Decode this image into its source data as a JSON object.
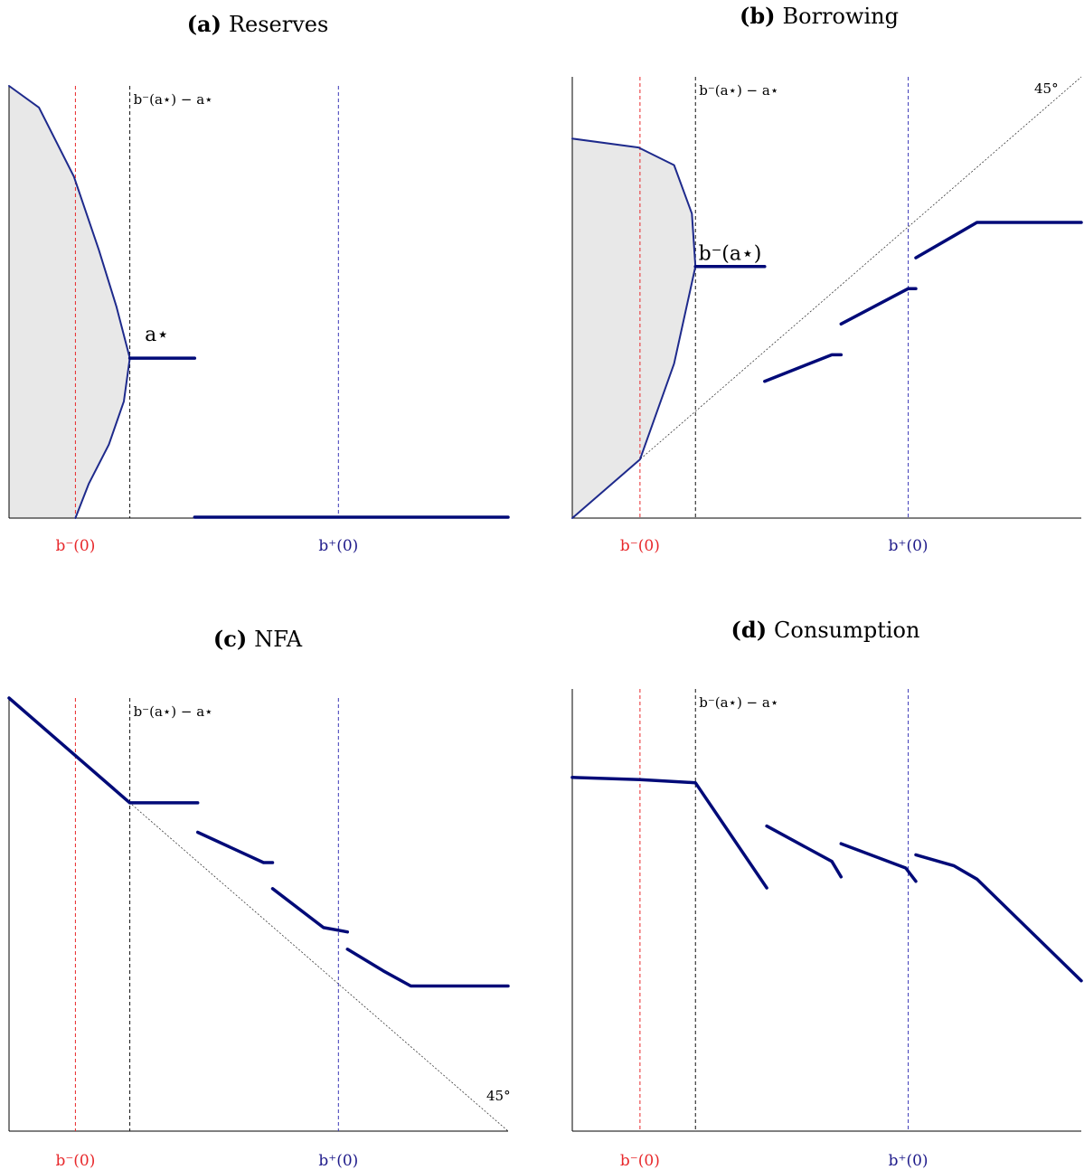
{
  "chart_data": [
    {
      "id": "a",
      "type": "line",
      "tag": "(a)",
      "title": "Reserves",
      "xlim": [
        0,
        10
      ],
      "ylim": [
        0,
        10
      ],
      "vlines": [
        {
          "x": 1.33,
          "color": "#e8282b",
          "tick_label": "b⁻(0)",
          "label": ""
        },
        {
          "x": 2.42,
          "color": "#111111",
          "tick_label": "",
          "label": "b⁻(a⋆) − a⋆"
        },
        {
          "x": 6.6,
          "color": "#3a38b8",
          "tick_label": "b⁺(0)",
          "label": ""
        }
      ],
      "diagonal": null,
      "shaded_region": [
        [
          0,
          10
        ],
        [
          0.6,
          9.5
        ],
        [
          1.3,
          7.9
        ],
        [
          1.8,
          6.2
        ],
        [
          2.15,
          4.9
        ],
        [
          2.42,
          3.7
        ],
        [
          2.3,
          2.7
        ],
        [
          2.0,
          1.7
        ],
        [
          1.6,
          0.8
        ],
        [
          1.33,
          0
        ],
        [
          0,
          0
        ]
      ],
      "series": [
        {
          "points": [
            [
              0,
              10
            ],
            [
              0.6,
              9.5
            ],
            [
              1.3,
              7.9
            ],
            [
              1.8,
              6.2
            ],
            [
              2.15,
              4.9
            ],
            [
              2.42,
              3.7
            ],
            [
              2.3,
              2.7
            ],
            [
              2.0,
              1.7
            ],
            [
              1.6,
              0.8
            ],
            [
              1.33,
              0
            ]
          ],
          "style": "boundary"
        },
        {
          "points": [
            [
              2.42,
              3.7
            ],
            [
              3.72,
              3.7
            ]
          ],
          "style": "thick"
        },
        {
          "points": [
            [
              3.72,
              0.02
            ],
            [
              10,
              0.02
            ]
          ],
          "style": "thick"
        }
      ],
      "annotations": [
        {
          "text": "a⋆",
          "x": 2.72,
          "y": 4.1
        }
      ]
    },
    {
      "id": "b",
      "type": "line",
      "tag": "(b)",
      "title": "Borrowing",
      "xlim": [
        0,
        10
      ],
      "ylim": [
        0,
        10
      ],
      "vlines": [
        {
          "x": 1.33,
          "color": "#e8282b",
          "tick_label": "b⁻(0)",
          "label": ""
        },
        {
          "x": 2.42,
          "color": "#111111",
          "tick_label": "",
          "label": "b⁻(a⋆) − a⋆"
        },
        {
          "x": 6.6,
          "color": "#3a38b8",
          "tick_label": "b⁺(0)",
          "label": ""
        }
      ],
      "diagonal": {
        "from": [
          0,
          0
        ],
        "to": [
          10,
          10
        ],
        "label": "45°"
      },
      "shaded_region": [
        [
          0,
          0
        ],
        [
          1.33,
          1.33
        ],
        [
          2.0,
          3.5
        ],
        [
          2.42,
          5.7
        ],
        [
          2.35,
          6.9
        ],
        [
          2.0,
          8.0
        ],
        [
          1.3,
          8.4
        ],
        [
          0,
          8.6
        ]
      ],
      "series": [
        {
          "points": [
            [
              0,
              8.6
            ],
            [
              1.3,
              8.4
            ],
            [
              2.0,
              8.0
            ],
            [
              2.35,
              6.9
            ],
            [
              2.42,
              5.7
            ],
            [
              2.0,
              3.5
            ],
            [
              1.33,
              1.33
            ],
            [
              0,
              0
            ]
          ],
          "style": "boundary"
        },
        {
          "points": [
            [
              2.42,
              5.7
            ],
            [
              3.78,
              5.7
            ]
          ],
          "style": "thick"
        },
        {
          "points": [
            [
              3.78,
              3.1
            ],
            [
              5.1,
              3.7
            ],
            [
              5.28,
              3.7
            ]
          ],
          "style": "thick"
        },
        {
          "points": [
            [
              5.28,
              4.4
            ],
            [
              6.6,
              5.2
            ],
            [
              6.75,
              5.2
            ]
          ],
          "style": "thick"
        },
        {
          "points": [
            [
              6.75,
              5.9
            ],
            [
              7.5,
              6.4
            ],
            [
              7.95,
              6.7
            ],
            [
              10,
              6.7
            ]
          ],
          "style": "thick"
        }
      ],
      "annotations": [
        {
          "text": "b⁻(a⋆)",
          "x": 2.48,
          "y": 5.85
        }
      ]
    },
    {
      "id": "c",
      "type": "line",
      "tag": "(c)",
      "title": "NFA",
      "xlim": [
        0,
        10
      ],
      "ylim": [
        0,
        10
      ],
      "vlines": [
        {
          "x": 1.33,
          "color": "#e8282b",
          "tick_label": "b⁻(0)",
          "label": ""
        },
        {
          "x": 2.42,
          "color": "#111111",
          "tick_label": "",
          "label": "b⁻(a⋆) − a⋆"
        },
        {
          "x": 6.6,
          "color": "#3a38b8",
          "tick_label": "b⁺(0)",
          "label": ""
        }
      ],
      "diagonal": {
        "from": [
          0,
          10
        ],
        "to": [
          10,
          0
        ],
        "label": "45°"
      },
      "shaded_region": null,
      "series": [
        {
          "points": [
            [
              0,
              10
            ],
            [
              1.33,
              8.67
            ],
            [
              2.42,
              7.58
            ],
            [
              3.78,
              7.58
            ]
          ],
          "style": "thick"
        },
        {
          "points": [
            [
              3.78,
              6.9
            ],
            [
              5.1,
              6.2
            ],
            [
              5.28,
              6.2
            ]
          ],
          "style": "thick"
        },
        {
          "points": [
            [
              5.28,
              5.6
            ],
            [
              6.3,
              4.7
            ],
            [
              6.78,
              4.6
            ]
          ],
          "style": "thick"
        },
        {
          "points": [
            [
              6.78,
              4.2
            ],
            [
              7.5,
              3.7
            ],
            [
              8.05,
              3.35
            ],
            [
              10,
              3.35
            ]
          ],
          "style": "thick"
        }
      ],
      "annotations": []
    },
    {
      "id": "d",
      "type": "line",
      "tag": "(d)",
      "title": "Consumption",
      "xlim": [
        0,
        10
      ],
      "ylim": [
        0,
        10
      ],
      "vlines": [
        {
          "x": 1.33,
          "color": "#e8282b",
          "tick_label": "b⁻(0)",
          "label": ""
        },
        {
          "x": 2.42,
          "color": "#111111",
          "tick_label": "",
          "label": "b⁻(a⋆) − a⋆"
        },
        {
          "x": 6.6,
          "color": "#3a38b8",
          "tick_label": "b⁺(0)",
          "label": ""
        }
      ],
      "diagonal": null,
      "shaded_region": null,
      "series": [
        {
          "points": [
            [
              0,
              8.0
            ],
            [
              1.33,
              7.95
            ],
            [
              2.42,
              7.88
            ],
            [
              3.82,
              5.5
            ]
          ],
          "style": "thick"
        },
        {
          "points": [
            [
              3.82,
              6.9
            ],
            [
              5.1,
              6.1
            ],
            [
              5.28,
              5.75
            ]
          ],
          "style": "thick"
        },
        {
          "points": [
            [
              5.28,
              6.5
            ],
            [
              6.55,
              5.95
            ],
            [
              6.75,
              5.65
            ]
          ],
          "style": "thick"
        },
        {
          "points": [
            [
              6.75,
              6.25
            ],
            [
              7.5,
              6.0
            ],
            [
              7.95,
              5.7
            ],
            [
              10,
              3.4
            ]
          ],
          "style": "thick"
        }
      ],
      "annotations": []
    }
  ],
  "colors": {
    "curve": "#000a78",
    "shade": "#e8e8e8",
    "boundary": "#1e2a8c",
    "red": "#e8282b",
    "blue": "#1e1a8a"
  }
}
